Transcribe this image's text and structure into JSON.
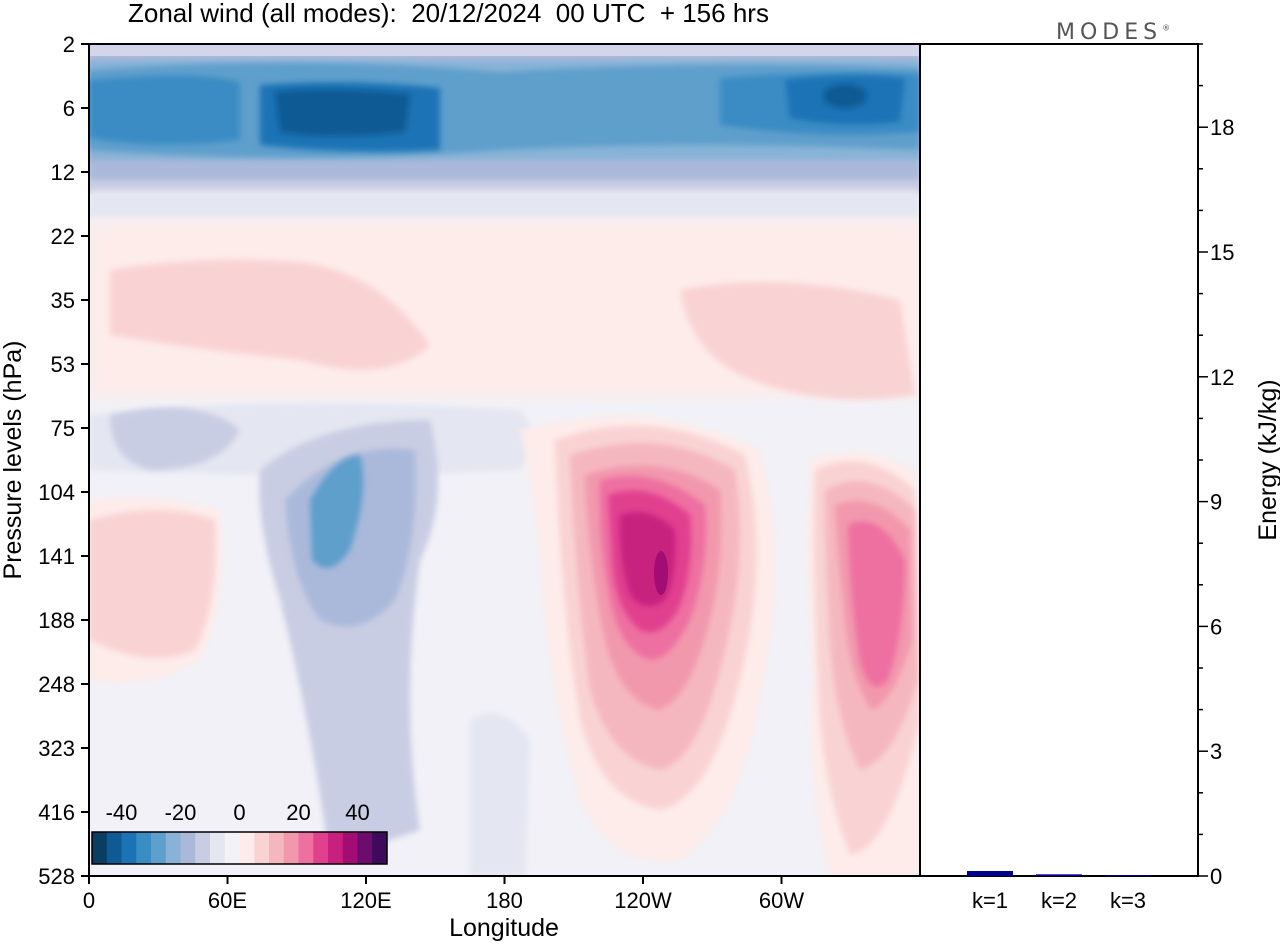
{
  "header": {
    "title": "Zonal wind (all modes):  20/12/2024  00 UTC  + 156 hrs",
    "logo": "MODES"
  },
  "colors": {
    "colormap": [
      "#0a3d62",
      "#0d5a94",
      "#1a73b5",
      "#3a8cc4",
      "#5e9fcc",
      "#88b3d6",
      "#aab9da",
      "#c9cde3",
      "#e4e6f1",
      "#f3f3f7",
      "#fdecea",
      "#f9d3d4",
      "#f5b7bf",
      "#f298ad",
      "#ee6fa0",
      "#e1408f",
      "#c8207f",
      "#a10d73",
      "#6e0c6d",
      "#3d0a5c"
    ],
    "bar": "#00008b"
  },
  "chart_data": [
    {
      "type": "heatmap",
      "title": "Zonal wind (all modes):  20/12/2024  00 UTC  + 156 hrs",
      "xlabel": "Longitude",
      "ylabel": "Pressure levels (hPa)",
      "x_ticks": [
        "0",
        "60E",
        "120E",
        "180",
        "120W",
        "60W"
      ],
      "y_ticks": [
        "2",
        "6",
        "12",
        "22",
        "35",
        "53",
        "75",
        "104",
        "141",
        "188",
        "248",
        "323",
        "416",
        "528"
      ],
      "colorbar": {
        "ticks": [
          "-40",
          "-20",
          "0",
          "20",
          "40"
        ],
        "range": [
          -50,
          50
        ]
      },
      "features": [
        {
          "name": "stratospheric easterlies",
          "lon": [
            0,
            360
          ],
          "level": "6",
          "value": -30
        },
        {
          "name": "easterly core",
          "lon": [
            80,
            140
          ],
          "level": "6",
          "value": -38
        },
        {
          "name": "easterly core",
          "lon": [
            300,
            340
          ],
          "level": "6",
          "value": -40
        },
        {
          "name": "westerly band",
          "lon": [
            5,
            150
          ],
          "level": "35",
          "value": 8
        },
        {
          "name": "westerly band",
          "lon": [
            260,
            360
          ],
          "level": "35",
          "value": 8
        },
        {
          "name": "westerly jet",
          "lon": [
            220,
            275
          ],
          "level": "141",
          "value": 46
        },
        {
          "name": "westerly jet",
          "lon": [
            325,
            360
          ],
          "level": "141",
          "value": 32
        },
        {
          "name": "weak westerlies",
          "lon": [
            0,
            60
          ],
          "level": "141",
          "value": 10
        },
        {
          "name": "upper easterlies",
          "lon": [
            80,
            150
          ],
          "level": "104",
          "value": -22
        },
        {
          "name": "weak easterlies",
          "lon": [
            10,
            70
          ],
          "level": "75",
          "value": -8
        }
      ]
    },
    {
      "type": "bar",
      "categories": [
        "k=1",
        "k=2",
        "k=3"
      ],
      "values": [
        0.12,
        0.04,
        0.02
      ],
      "ylabel": "Energy (kJ/kg)",
      "yticks": [
        "0",
        "3",
        "6",
        "9",
        "12",
        "15",
        "18"
      ],
      "ylim": [
        0,
        20
      ]
    }
  ]
}
